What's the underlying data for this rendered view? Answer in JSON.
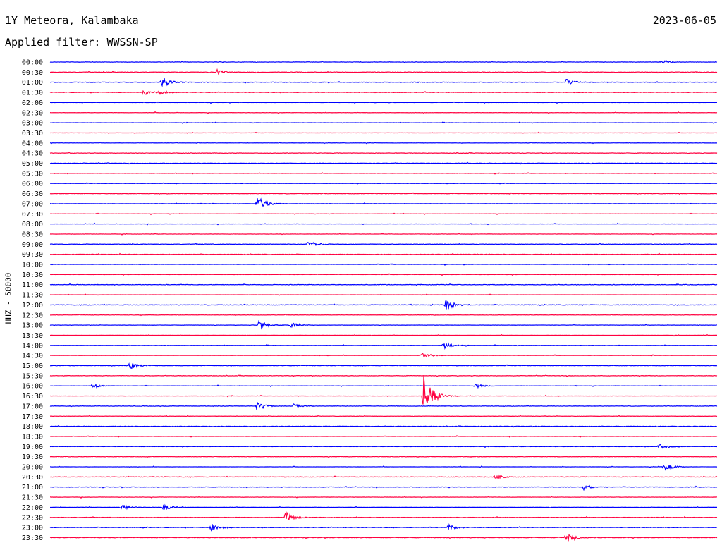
{
  "header": {
    "station": "1Y Meteora, Kalambaka",
    "date": "2023-06-05",
    "filter": "Applied filter: WWSSN-SP"
  },
  "colors": {
    "blue": "#0000ff",
    "red": "#ff0040",
    "text": "#000000"
  },
  "chart_data": {
    "type": "line",
    "title": "1Y Meteora, Kalambaka",
    "ylabel": "HHZ - 50000",
    "row_labels": [
      "00:00",
      "00:30",
      "01:00",
      "01:30",
      "02:00",
      "02:30",
      "03:00",
      "03:30",
      "04:00",
      "04:30",
      "05:00",
      "05:30",
      "06:00",
      "06:30",
      "07:00",
      "07:30",
      "08:00",
      "08:30",
      "09:00",
      "09:30",
      "10:00",
      "10:30",
      "11:00",
      "11:30",
      "12:00",
      "12:30",
      "13:00",
      "13:30",
      "14:00",
      "14:30",
      "15:00",
      "15:30",
      "16:00",
      "16:30",
      "17:00",
      "17:30",
      "18:00",
      "18:30",
      "19:00",
      "19:30",
      "20:00",
      "20:30",
      "21:00",
      "21:30",
      "22:00",
      "22:30",
      "23:00",
      "23:30"
    ],
    "row_duration_minutes": 30,
    "trace_colors": [
      "blue",
      "red"
    ],
    "events": [
      {
        "row": "00:00",
        "minute": 27.5,
        "amp": 3
      },
      {
        "row": "00:30",
        "minute": 7.5,
        "amp": 4
      },
      {
        "row": "01:00",
        "minute": 5.0,
        "amp": 9
      },
      {
        "row": "01:00",
        "minute": 23.2,
        "amp": 5
      },
      {
        "row": "01:30",
        "minute": 4.2,
        "amp": 4
      },
      {
        "row": "01:30",
        "minute": 4.9,
        "amp": 3
      },
      {
        "row": "07:00",
        "minute": 9.3,
        "amp": 12
      },
      {
        "row": "09:00",
        "minute": 11.6,
        "amp": 6
      },
      {
        "row": "12:00",
        "minute": 17.8,
        "amp": 8
      },
      {
        "row": "13:00",
        "minute": 9.4,
        "amp": 7
      },
      {
        "row": "13:00",
        "minute": 10.8,
        "amp": 4
      },
      {
        "row": "14:00",
        "minute": 17.7,
        "amp": 5
      },
      {
        "row": "14:30",
        "minute": 16.7,
        "amp": 5
      },
      {
        "row": "15:00",
        "minute": 3.6,
        "amp": 5
      },
      {
        "row": "16:00",
        "minute": 1.9,
        "amp": 4
      },
      {
        "row": "16:00",
        "minute": 19.1,
        "amp": 4
      },
      {
        "row": "16:30",
        "minute": 16.8,
        "amp": 30
      },
      {
        "row": "17:00",
        "minute": 9.3,
        "amp": 6
      },
      {
        "row": "17:00",
        "minute": 10.9,
        "amp": 4
      },
      {
        "row": "19:00",
        "minute": 27.4,
        "amp": 6
      },
      {
        "row": "20:00",
        "minute": 27.6,
        "amp": 7
      },
      {
        "row": "20:30",
        "minute": 20.0,
        "amp": 4
      },
      {
        "row": "21:00",
        "minute": 24.0,
        "amp": 4
      },
      {
        "row": "22:00",
        "minute": 3.2,
        "amp": 5
      },
      {
        "row": "22:00",
        "minute": 5.1,
        "amp": 5
      },
      {
        "row": "22:30",
        "minute": 10.6,
        "amp": 8
      },
      {
        "row": "23:00",
        "minute": 7.2,
        "amp": 7
      },
      {
        "row": "23:00",
        "minute": 17.9,
        "amp": 5
      },
      {
        "row": "23:30",
        "minute": 23.2,
        "amp": 7
      }
    ]
  }
}
